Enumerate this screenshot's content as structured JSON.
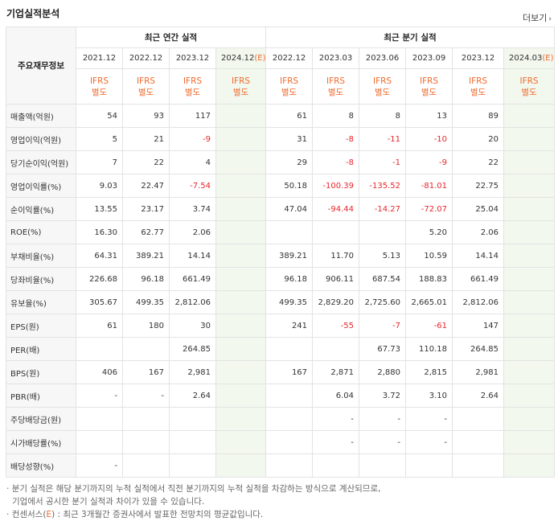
{
  "title": "기업실적분석",
  "more_label": "더보기",
  "header": {
    "row_label": "주요재무정보",
    "annual_title": "최근 연간 실적",
    "quarter_title": "최근 분기 실적",
    "annual_periods": [
      "2021.12",
      "2022.12",
      "2023.12",
      "2024.12(E)"
    ],
    "quarter_periods": [
      "2022.12",
      "2023.03",
      "2023.06",
      "2023.09",
      "2023.12",
      "2024.03(E)"
    ],
    "ifrs": "IFRS",
    "ifrs_sub": "별도"
  },
  "rows": [
    {
      "label": "매출액(억원)",
      "values": [
        "54",
        "93",
        "117",
        "",
        "61",
        "8",
        "8",
        "13",
        "89",
        ""
      ]
    },
    {
      "label": "영업이익(억원)",
      "values": [
        "5",
        "21",
        "-9",
        "",
        "31",
        "-8",
        "-11",
        "-10",
        "20",
        ""
      ]
    },
    {
      "label": "당기순이익(억원)",
      "values": [
        "7",
        "22",
        "4",
        "",
        "29",
        "-8",
        "-1",
        "-9",
        "22",
        ""
      ]
    },
    {
      "label": "영업이익률(%)",
      "values": [
        "9.03",
        "22.47",
        "-7.54",
        "",
        "50.18",
        "-100.39",
        "-135.52",
        "-81.01",
        "22.75",
        ""
      ]
    },
    {
      "label": "순이익률(%)",
      "values": [
        "13.55",
        "23.17",
        "3.74",
        "",
        "47.04",
        "-94.44",
        "-14.27",
        "-72.07",
        "25.04",
        ""
      ]
    },
    {
      "label": "ROE(%)",
      "values": [
        "16.30",
        "62.77",
        "2.06",
        "",
        "",
        "",
        "",
        "5.20",
        "2.06",
        ""
      ]
    },
    {
      "label": "부채비율(%)",
      "values": [
        "64.31",
        "389.21",
        "14.14",
        "",
        "389.21",
        "11.70",
        "5.13",
        "10.59",
        "14.14",
        ""
      ]
    },
    {
      "label": "당좌비율(%)",
      "values": [
        "226.68",
        "96.18",
        "661.49",
        "",
        "96.18",
        "906.11",
        "687.54",
        "188.83",
        "661.49",
        ""
      ]
    },
    {
      "label": "유보율(%)",
      "values": [
        "305.67",
        "499.35",
        "2,812.06",
        "",
        "499.35",
        "2,829.20",
        "2,725.60",
        "2,665.01",
        "2,812.06",
        ""
      ]
    },
    {
      "label": "EPS(원)",
      "values": [
        "61",
        "180",
        "30",
        "",
        "241",
        "-55",
        "-7",
        "-61",
        "147",
        ""
      ]
    },
    {
      "label": "PER(배)",
      "values": [
        "",
        "",
        "264.85",
        "",
        "",
        "",
        "67.73",
        "110.18",
        "264.85",
        ""
      ]
    },
    {
      "label": "BPS(원)",
      "values": [
        "406",
        "167",
        "2,981",
        "",
        "167",
        "2,871",
        "2,880",
        "2,815",
        "2,981",
        ""
      ]
    },
    {
      "label": "PBR(배)",
      "values": [
        "-",
        "-",
        "2.64",
        "",
        "",
        "6.04",
        "3.72",
        "3.10",
        "2.64",
        ""
      ]
    },
    {
      "label": "주당배당금(원)",
      "values": [
        "",
        "",
        "",
        "",
        "",
        "-",
        "-",
        "-",
        "",
        ""
      ]
    },
    {
      "label": "시가배당률(%)",
      "values": [
        "",
        "",
        "",
        "",
        "",
        "-",
        "-",
        "-",
        "",
        ""
      ]
    },
    {
      "label": "배당성향(%)",
      "values": [
        "-",
        "",
        "",
        "",
        "",
        "",
        "",
        "",
        "",
        ""
      ]
    }
  ],
  "notes": {
    "line1": "분기 실적은 해당 분기까지의 누적 실적에서 직전 분기까지의 누적 실적을 차감하는 방식으로 계산되므로,",
    "line2": "기업에서 공시한 분기 실적과 차이가 있을 수 있습니다.",
    "line3_prefix": "컨센서스(",
    "line3_e": "E",
    "line3_suffix": ") : 최근 3개월간 증권사에서 발표한 전망치의 평균값입니다."
  },
  "colors": {
    "accent": "#f06a2d",
    "negative": "#e8262a",
    "estimate_bg": "#f2f8ee"
  }
}
